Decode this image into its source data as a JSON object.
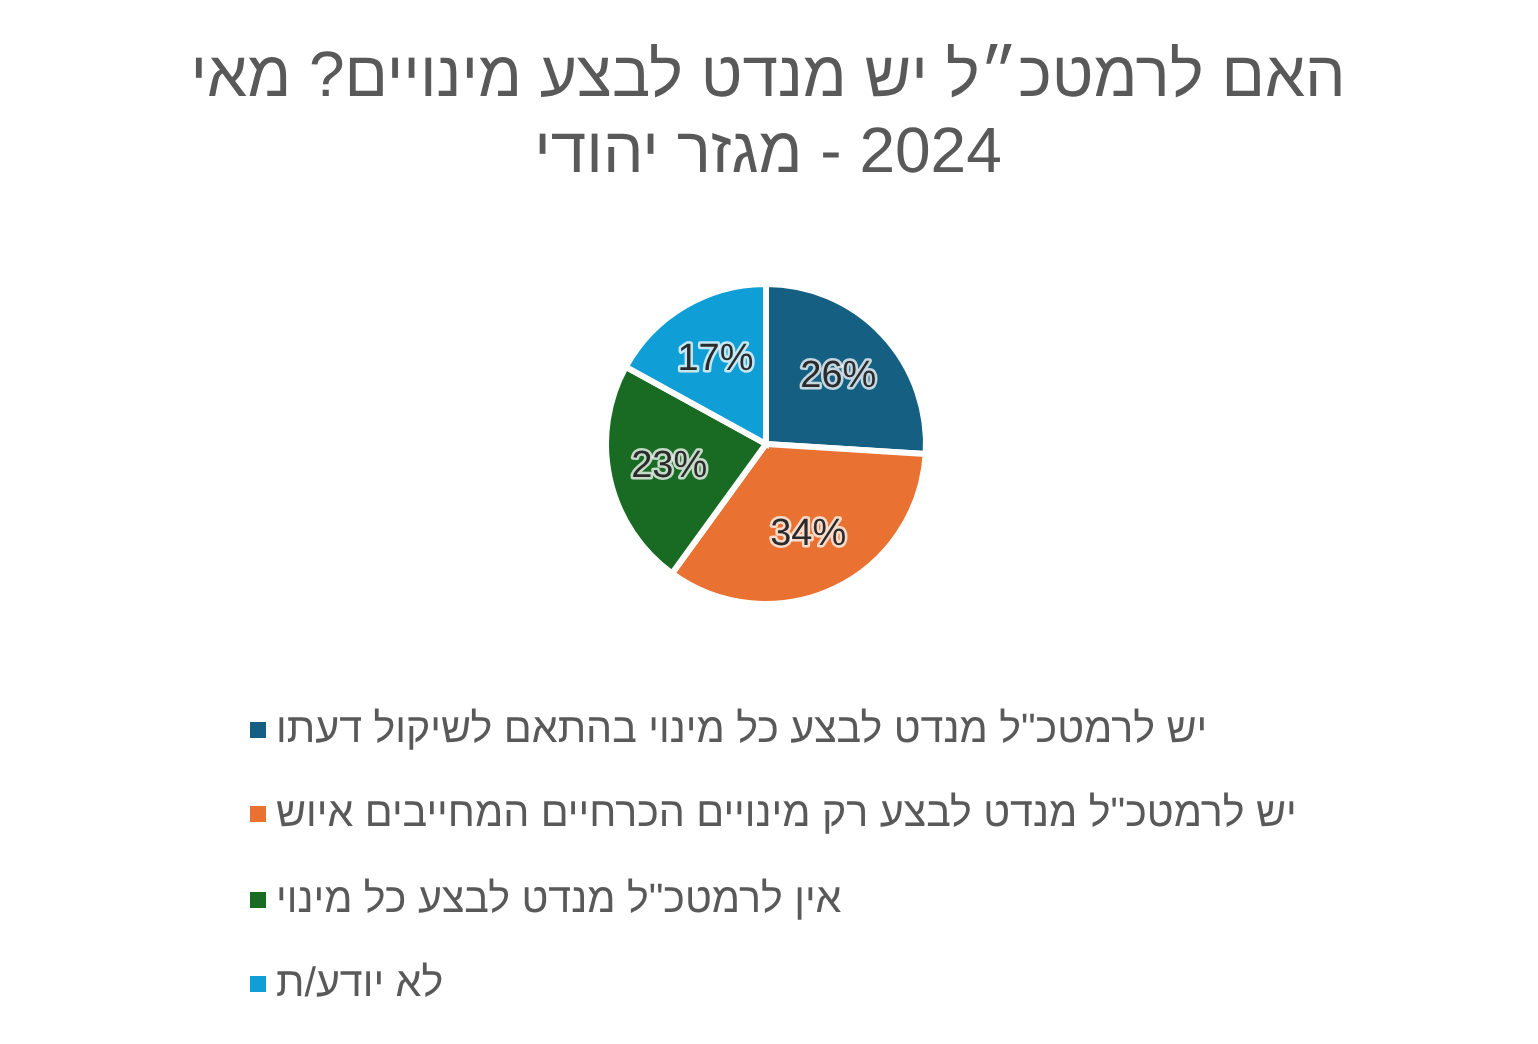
{
  "chart_data": {
    "type": "pie",
    "title": "האם לרמטכ״ל יש מנדט לבצע מינויים? מאי 2024 - מגזר יהודי",
    "categories": [
      "יש לרמטכ\"ל מנדט לבצע כל מינוי בהתאם לשיקול דעתו",
      "יש לרמטכ\"ל מנדט לבצע רק מינויים הכרחיים המחייבים איוש",
      "אין לרמטכ\"ל מנדט לבצע כל מינוי",
      "לא יודע/ת"
    ],
    "values": [
      26,
      34,
      23,
      17
    ],
    "value_labels": [
      "26%",
      "34%",
      "23%",
      "17%"
    ],
    "colors": [
      "#156082",
      "#e97132",
      "#196b24",
      "#0f9ed5"
    ],
    "legend": "bottom"
  }
}
